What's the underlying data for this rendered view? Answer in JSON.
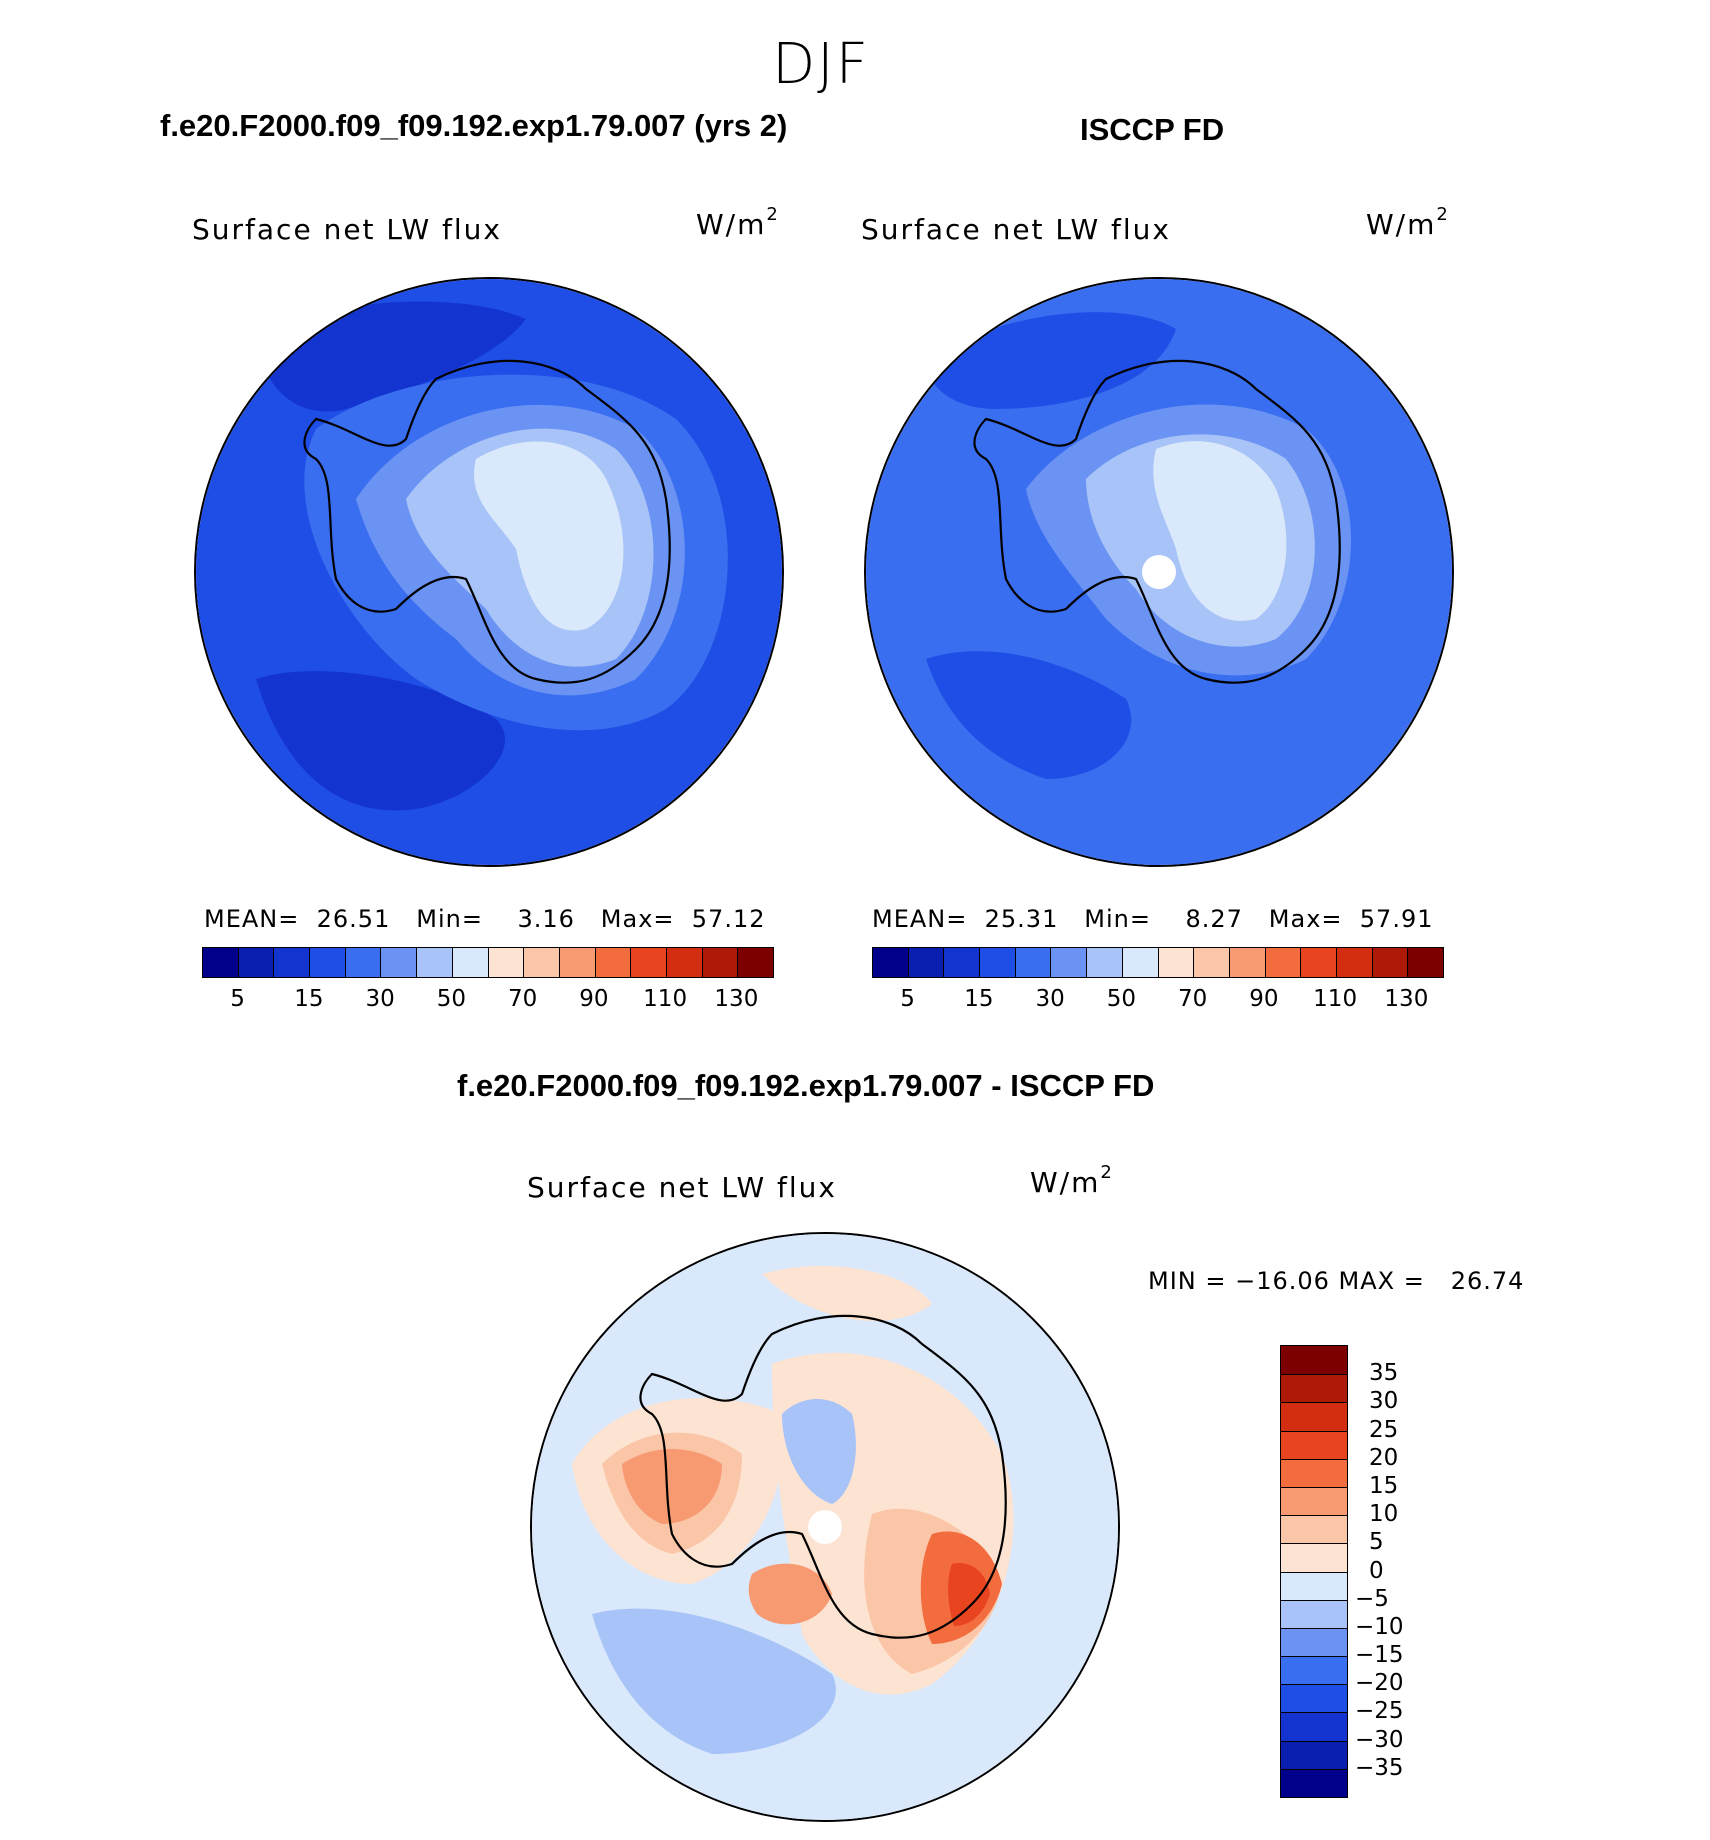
{
  "season": "DJF",
  "panels": [
    {
      "title": "f.e20.F2000.f09_f09.192.exp1.79.007 (yrs 2)",
      "variable": "Surface net LW flux",
      "units": "W/m",
      "units_sup": "2",
      "stats": {
        "mean_label": "MEAN=",
        "mean": "26.51",
        "min_label": "Min=",
        "min": "3.16",
        "max_label": "Max=",
        "max": "57.12"
      }
    },
    {
      "title": "ISCCP FD",
      "variable": "Surface net LW flux",
      "units": "W/m",
      "units_sup": "2",
      "stats": {
        "mean_label": "MEAN=",
        "mean": "25.31",
        "min_label": "Min=",
        "min": "8.27",
        "max_label": "Max=",
        "max": "57.91"
      }
    }
  ],
  "abs_colorbar": {
    "colors": [
      "#00008b",
      "#0a1fb0",
      "#1434cf",
      "#1f4ee6",
      "#3a6ef0",
      "#6a93f3",
      "#a8c3f7",
      "#d9e8fb",
      "#fde4d2",
      "#fbc5a8",
      "#f79a72",
      "#f26c3d",
      "#e84420",
      "#d32e12",
      "#ad1a07",
      "#7d0000"
    ],
    "tick_labels": [
      "5",
      "15",
      "30",
      "50",
      "70",
      "90",
      "110",
      "130"
    ]
  },
  "diff": {
    "title": "f.e20.F2000.f09_f09.192.exp1.79.007 - ISCCP FD",
    "variable": "Surface net LW flux",
    "units": "W/m",
    "units_sup": "2",
    "stats": "MIN = −16.06 MAX =   26.74",
    "colorbar": {
      "colors": [
        "#00008b",
        "#0a1fb0",
        "#1434cf",
        "#1f4ee6",
        "#3a6ef0",
        "#6a93f3",
        "#a8c3f7",
        "#d9e8fb",
        "#fde4d2",
        "#fbc5a8",
        "#f79a72",
        "#f26c3d",
        "#e84420",
        "#d32e12",
        "#ad1a07",
        "#7d0000"
      ],
      "tick_labels": [
        "−35",
        "−30",
        "−25",
        "−20",
        "−15",
        "−10",
        "−5",
        "0",
        "5",
        "10",
        "15",
        "20",
        "25",
        "30",
        "35"
      ]
    }
  },
  "map_colors": {
    "darkest": "#1434cf",
    "dark": "#1f4ee6",
    "mid": "#3a6ef0",
    "light": "#6a93f3",
    "lighter": "#a8c3f7",
    "palest": "#d9e8fb",
    "warm1": "#fde4d2",
    "warm2": "#fbc5a8",
    "warm3": "#f79a72",
    "warm4": "#f26c3d",
    "warm5": "#e84420"
  }
}
